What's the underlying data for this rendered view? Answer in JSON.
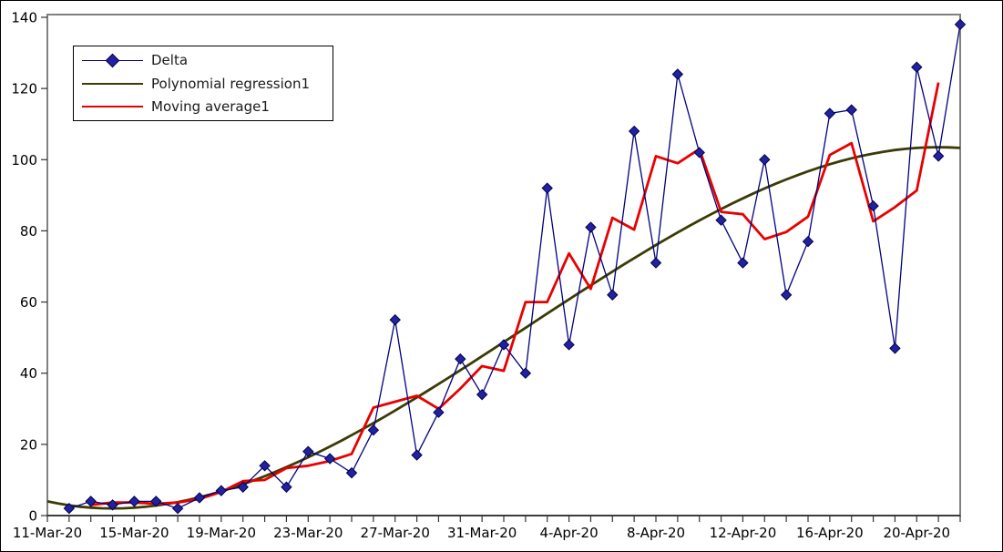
{
  "chart_data": {
    "type": "line",
    "title": "",
    "background": "#ffffff",
    "frame_color": "#808080",
    "axis_color": "#333333",
    "x_axis": {
      "first_date": "11-Mar-20",
      "last_date": "22-Apr-20",
      "days_span": 42,
      "minor_tick_every_days": 1,
      "label_every_n_days": 4,
      "tick_labels": [
        "11-Mar-20",
        "15-Mar-20",
        "19-Mar-20",
        "23-Mar-20",
        "27-Mar-20",
        "31-Mar-20",
        "4-Apr-20",
        "8-Apr-20",
        "12-Apr-20",
        "16-Apr-20",
        "20-Apr-20"
      ]
    },
    "y_axis": {
      "min": 0,
      "max": 140,
      "step": 20,
      "tick_labels": [
        "0",
        "20",
        "40",
        "60",
        "80",
        "100",
        "120",
        "140"
      ],
      "grid": false
    },
    "dates": [
      "12-Mar-20",
      "13-Mar-20",
      "14-Mar-20",
      "15-Mar-20",
      "16-Mar-20",
      "17-Mar-20",
      "18-Mar-20",
      "19-Mar-20",
      "20-Mar-20",
      "21-Mar-20",
      "22-Mar-20",
      "23-Mar-20",
      "24-Mar-20",
      "25-Mar-20",
      "26-Mar-20",
      "27-Mar-20",
      "28-Mar-20",
      "29-Mar-20",
      "30-Mar-20",
      "31-Mar-20",
      "1-Apr-20",
      "2-Apr-20",
      "3-Apr-20",
      "4-Apr-20",
      "5-Apr-20",
      "6-Apr-20",
      "7-Apr-20",
      "8-Apr-20",
      "9-Apr-20",
      "10-Apr-20",
      "11-Apr-20",
      "12-Apr-20",
      "13-Apr-20",
      "14-Apr-20",
      "15-Apr-20",
      "16-Apr-20",
      "17-Apr-20",
      "18-Apr-20",
      "19-Apr-20",
      "20-Apr-20",
      "21-Apr-20",
      "22-Apr-20"
    ],
    "series": [
      {
        "name": "Delta",
        "kind": "data",
        "color": "#00007f",
        "line_width": 1.3,
        "marker": "diamond",
        "marker_fill": "#2222a0",
        "marker_stroke": "#00004d",
        "values": [
          2,
          4,
          3,
          4,
          4,
          2,
          5,
          7,
          8,
          14,
          8,
          18,
          16,
          12,
          24,
          55,
          17,
          29,
          44,
          34,
          48,
          40,
          92,
          48,
          81,
          62,
          108,
          71,
          124,
          102,
          83,
          71,
          100,
          62,
          77,
          113,
          114,
          87,
          47,
          126,
          101,
          138
        ]
      },
      {
        "name": "Polynomial regression1",
        "kind": "polynomial",
        "degree": 3,
        "color": "#3b3b06",
        "line_width": 2.8,
        "coefficients": [
          4,
          -1.3653,
          0.2442,
          -0.0037
        ],
        "t_domain": [
          0,
          42
        ]
      },
      {
        "name": "Moving average1",
        "kind": "moving_average",
        "window": 3,
        "centered": true,
        "color": "#e80000",
        "line_width": 2.8
      }
    ],
    "legend": {
      "position": "top-left",
      "border": "#000000",
      "background": "#ffffff"
    }
  }
}
